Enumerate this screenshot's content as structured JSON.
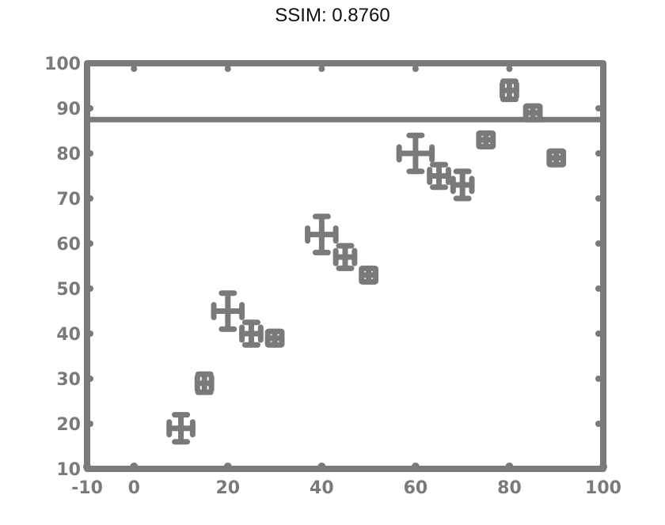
{
  "chart_data": {
    "type": "scatter",
    "title": "SSIM: 0.8760",
    "xlabel": "",
    "ylabel": "",
    "xlim": [
      -10,
      100
    ],
    "ylim": [
      10,
      100
    ],
    "x_ticks": [
      -10,
      0,
      20,
      40,
      60,
      80,
      100
    ],
    "x_tick_labels": [
      "-10",
      "0",
      "20",
      "40",
      "60",
      "80",
      "100"
    ],
    "y_ticks": [
      10,
      20,
      30,
      40,
      50,
      60,
      70,
      80,
      90,
      100
    ],
    "y_tick_labels": [
      "10",
      "20",
      "30",
      "40",
      "50",
      "60",
      "70",
      "80",
      "90",
      "100"
    ],
    "grid": false,
    "series": [
      {
        "marker": "cross-with-error-bars",
        "color": "#7a7a7a",
        "points": [
          {
            "x": 10,
            "y": 19,
            "xerr": 2.5,
            "yerr": 3
          },
          {
            "x": 15,
            "y": 29,
            "xerr": 1.5,
            "yerr": 2
          },
          {
            "x": 20,
            "y": 45,
            "xerr": 3,
            "yerr": 4
          },
          {
            "x": 25,
            "y": 40,
            "xerr": 2,
            "yerr": 2.5
          },
          {
            "x": 30,
            "y": 39,
            "xerr": 1.5,
            "yerr": 1.5
          },
          {
            "x": 40,
            "y": 62,
            "xerr": 3,
            "yerr": 4
          },
          {
            "x": 45,
            "y": 57,
            "xerr": 2,
            "yerr": 2.5
          },
          {
            "x": 50,
            "y": 53,
            "xerr": 1.5,
            "yerr": 1.5
          },
          {
            "x": 60,
            "y": 80,
            "xerr": 3.5,
            "yerr": 4
          },
          {
            "x": 65,
            "y": 75,
            "xerr": 2,
            "yerr": 2.5
          },
          {
            "x": 70,
            "y": 73,
            "xerr": 2,
            "yerr": 3
          },
          {
            "x": 75,
            "y": 83,
            "xerr": 1.5,
            "yerr": 1.5
          },
          {
            "x": 80,
            "y": 94,
            "xerr": 1.5,
            "yerr": 2
          },
          {
            "x": 85,
            "y": 89,
            "xerr": 1.5,
            "yerr": 1.5
          },
          {
            "x": 90,
            "y": 79,
            "xerr": 1.5,
            "yerr": 1.5
          }
        ]
      }
    ]
  }
}
